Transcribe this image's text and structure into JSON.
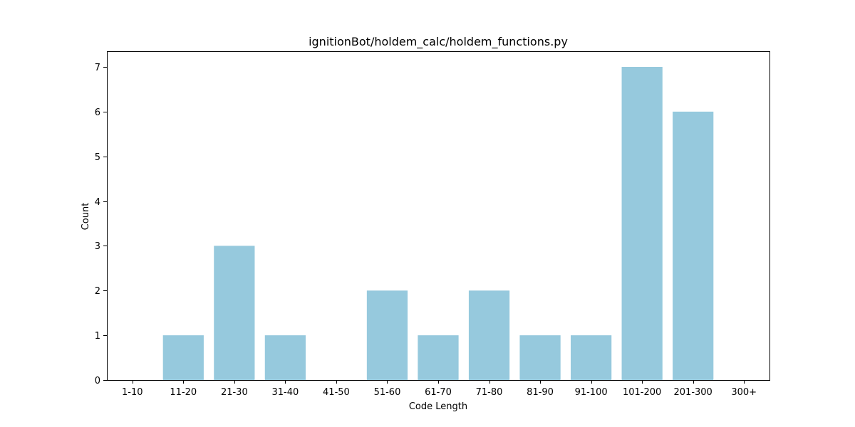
{
  "chart_data": {
    "type": "bar",
    "title": "ignitionBot/holdem_calc/holdem_functions.py",
    "xlabel": "Code Length",
    "ylabel": "Count",
    "categories": [
      "1-10",
      "11-20",
      "21-30",
      "31-40",
      "41-50",
      "51-60",
      "61-70",
      "71-80",
      "81-90",
      "91-100",
      "101-200",
      "201-300",
      "300+"
    ],
    "values": [
      0,
      1,
      3,
      1,
      0,
      2,
      1,
      2,
      1,
      1,
      7,
      6,
      0
    ],
    "ylim": [
      0,
      7.35
    ],
    "yticks": [
      0,
      1,
      2,
      3,
      4,
      5,
      6,
      7
    ],
    "grid": false,
    "bar_color": "#96c9dd"
  }
}
